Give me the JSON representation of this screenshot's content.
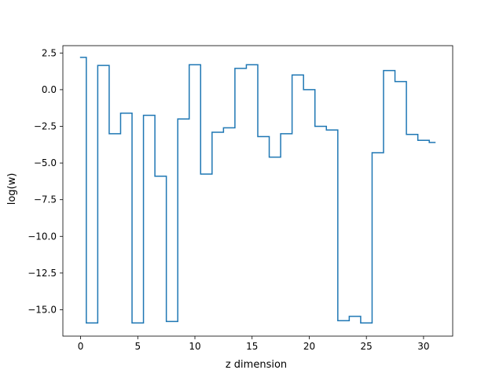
{
  "chart_data": {
    "type": "line",
    "drawstyle": "steps-mid",
    "title": "",
    "xlabel": "z dimension",
    "ylabel": "log(w)",
    "xlim": [
      -1.55,
      32.55
    ],
    "ylim": [
      -16.8,
      3.0
    ],
    "xticks": [
      0,
      5,
      10,
      15,
      20,
      25,
      30
    ],
    "yticks": [
      2.5,
      0.0,
      -2.5,
      -5.0,
      -7.5,
      -10.0,
      -12.5,
      -15.0
    ],
    "xtick_labels": [
      "0",
      "5",
      "10",
      "15",
      "20",
      "25",
      "30"
    ],
    "ytick_labels": [
      "2.5",
      "0.0",
      "−2.5",
      "−5.0",
      "−7.5",
      "−10.0",
      "−12.5",
      "−15.0"
    ],
    "grid": false,
    "series": [
      {
        "color": "#1f77b4",
        "x": [
          0,
          1,
          2,
          3,
          4,
          5,
          6,
          7,
          8,
          9,
          10,
          11,
          12,
          13,
          14,
          15,
          16,
          17,
          18,
          19,
          20,
          21,
          22,
          23,
          24,
          25,
          26,
          27,
          28,
          29,
          30,
          31
        ],
        "values": [
          2.2,
          -15.9,
          1.65,
          -3.0,
          -1.6,
          -15.9,
          -1.75,
          -5.9,
          -15.8,
          -2.0,
          1.7,
          -5.75,
          -2.9,
          -2.6,
          1.45,
          1.7,
          -3.2,
          -4.6,
          -3.0,
          1.0,
          0.0,
          -2.5,
          -2.75,
          -15.75,
          -15.45,
          -15.9,
          -4.3,
          1.3,
          0.55,
          -3.05,
          -3.45,
          -3.6
        ]
      }
    ]
  }
}
